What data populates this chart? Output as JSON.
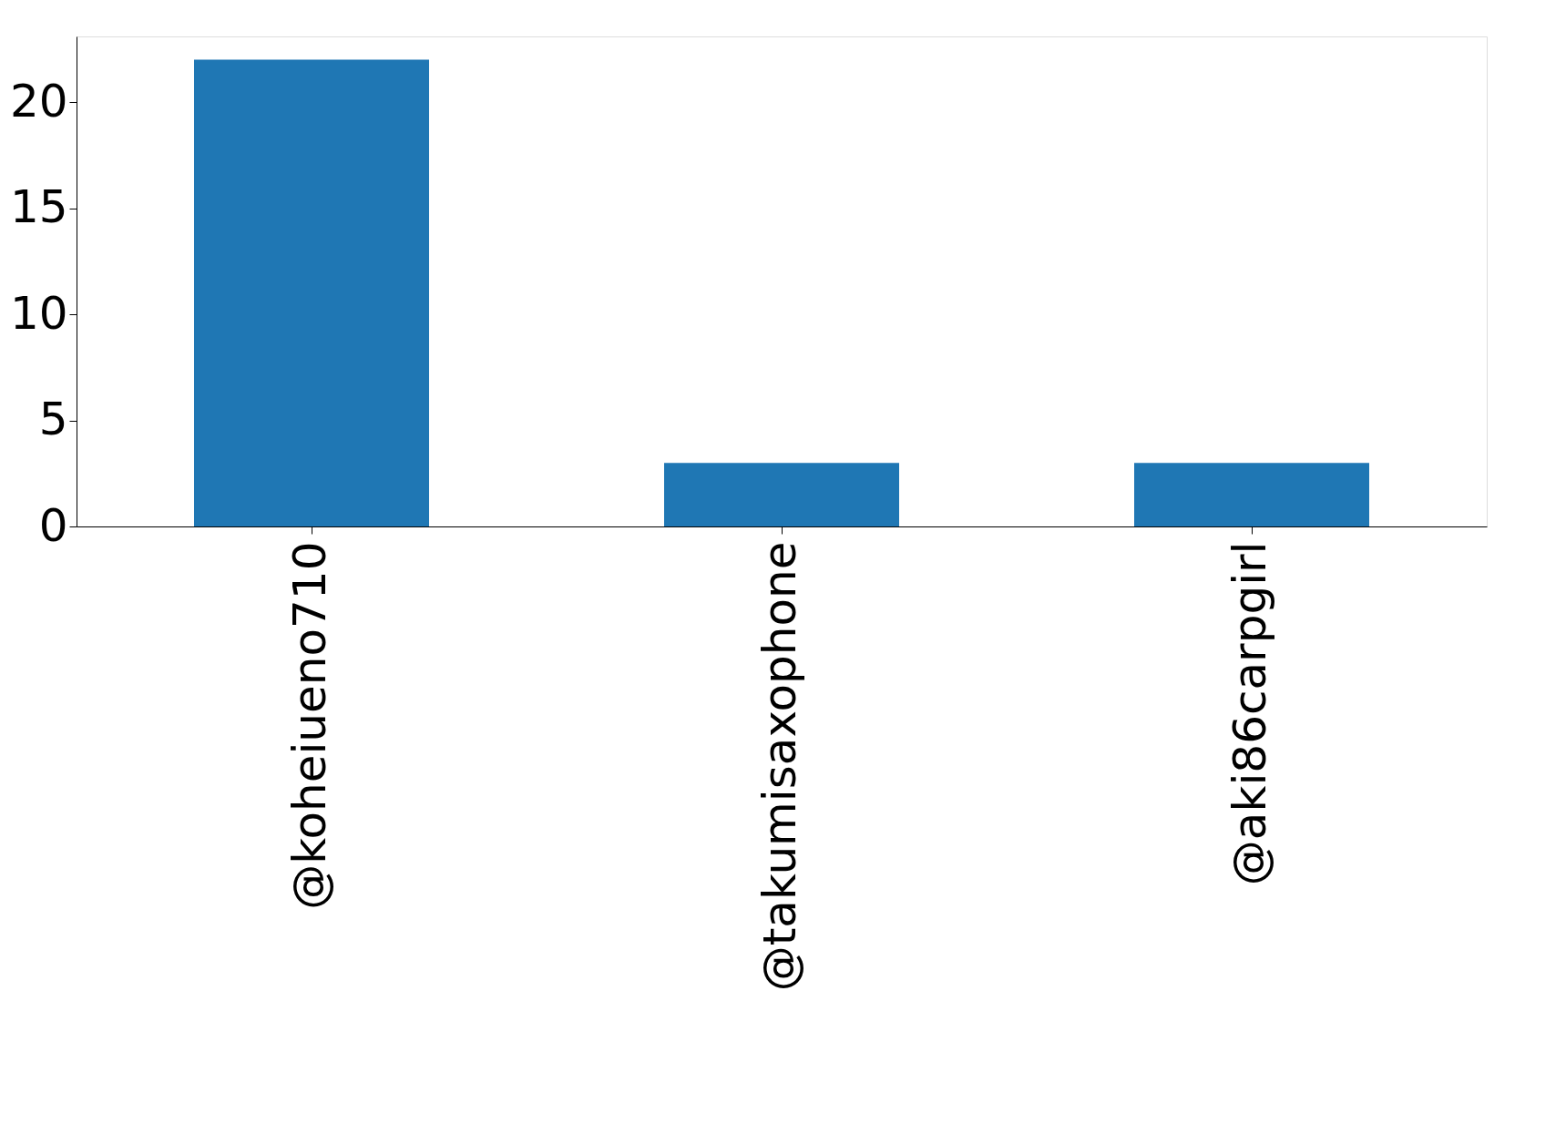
{
  "chart_data": {
    "type": "bar",
    "categories": [
      "@koheiueno710",
      "@takumisaxophone",
      "@aki86carpgirl"
    ],
    "values": [
      22,
      3,
      3
    ],
    "color": "#1f77b4",
    "ylim": [
      0,
      23.1
    ],
    "yticks": [
      0,
      5,
      10,
      15,
      20
    ],
    "grid": false
  }
}
